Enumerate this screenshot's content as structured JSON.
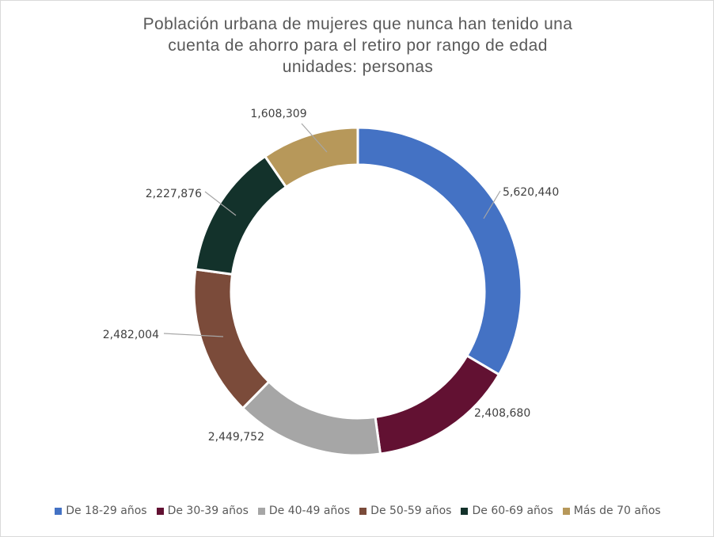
{
  "chart_data": {
    "type": "pie",
    "donut": true,
    "title_lines": [
      "Población urbana de mujeres que nunca han tenido una",
      "cuenta de ahorro para el retiro por rango de edad",
      "unidades: personas"
    ],
    "categories": [
      "De 18-29 años",
      "De 30-39 años",
      "De 40-49 años",
      "De 50-59 años",
      "De 60-69 años",
      "Más de 70 años"
    ],
    "values": [
      5620440,
      2408680,
      2449752,
      2482004,
      2227876,
      1608309
    ],
    "data_labels": [
      "5,620,440",
      "2,408,680",
      "2,449,752",
      "2,482,004",
      "2,227,876",
      "1,608,309"
    ],
    "colors": [
      "#4472C4",
      "#621132",
      "#A6A6A6",
      "#7B4B3A",
      "#13322B",
      "#B7985A"
    ],
    "legend_position": "bottom"
  }
}
